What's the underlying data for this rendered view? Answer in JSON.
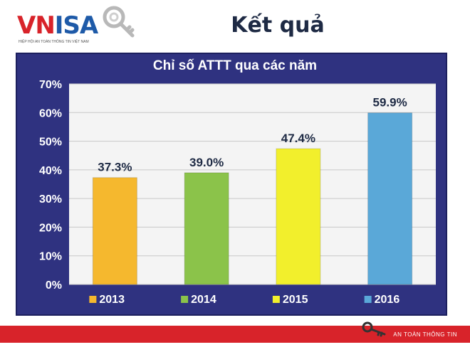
{
  "logo": {
    "brand_a": "VN",
    "brand_b": "ISA",
    "subtitle": "HIỆP HỘI AN TOÀN THÔNG TIN VIỆT NAM"
  },
  "page_title": "Kết quả",
  "footer": {
    "text": "AN TOÀN THÔNG TIN"
  },
  "colors": {
    "background_panel": "#2f3280",
    "plot_area": "#f4f4f4",
    "text": "#1e2a44"
  },
  "chart_data": {
    "type": "bar",
    "title": "Chỉ số ATTT qua các năm",
    "categories": [
      "2013",
      "2014",
      "2015",
      "2016"
    ],
    "values": [
      37.3,
      39.0,
      47.4,
      59.9
    ],
    "data_labels": [
      "37.3%",
      "39.0%",
      "47.4%",
      "59.9%"
    ],
    "colors": [
      "#f5b82e",
      "#8bc34a",
      "#f2ef2c",
      "#5aa8d8"
    ],
    "ylim": [
      0,
      70
    ],
    "yticks": [
      "0%",
      "10%",
      "20%",
      "30%",
      "40%",
      "50%",
      "60%",
      "70%"
    ],
    "legend": [
      "2013",
      "2014",
      "2015",
      "2016"
    ],
    "legend_position": "bottom",
    "grid": true
  }
}
